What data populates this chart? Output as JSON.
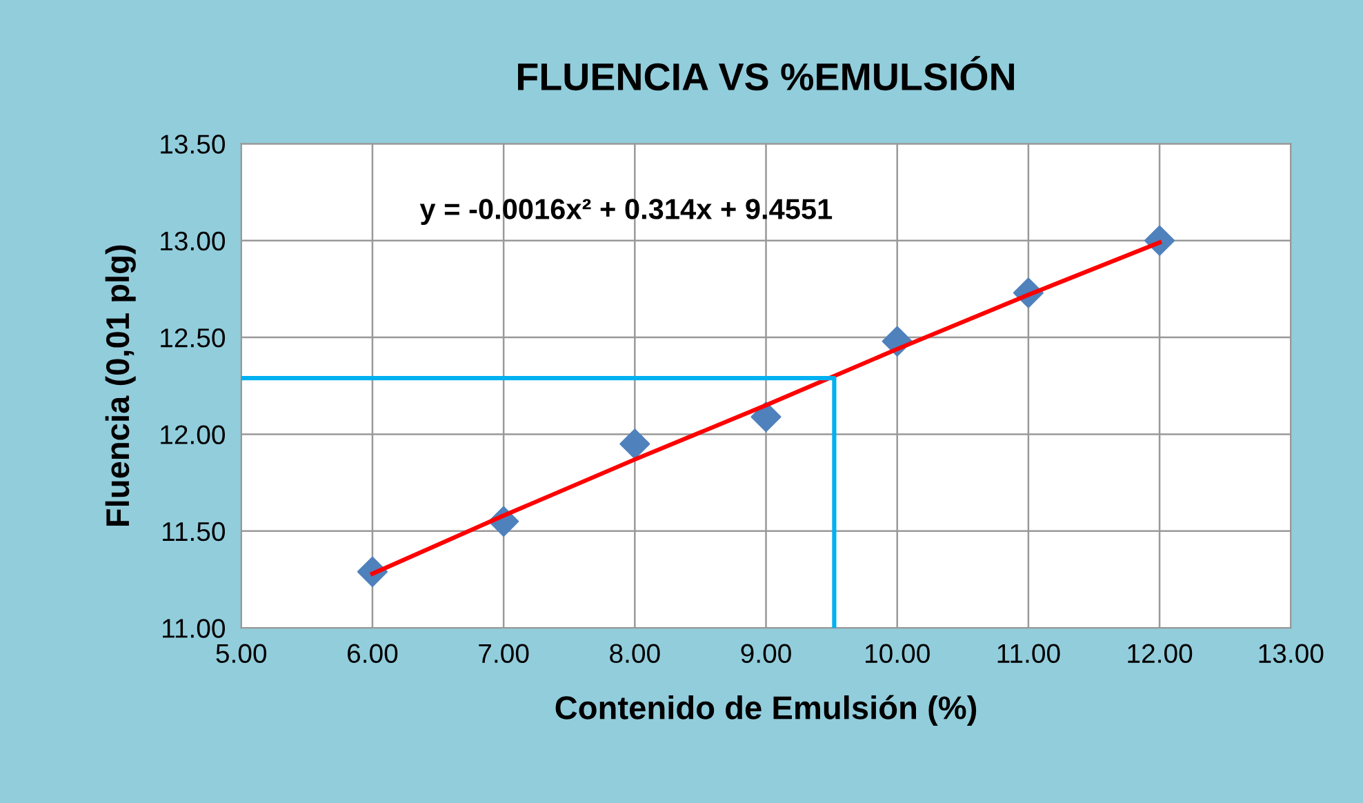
{
  "chart_data": {
    "type": "scatter",
    "title": "FLUENCIA VS %EMULSIÓN",
    "xlabel": "Contenido de Emulsión (%)",
    "ylabel": "Fluencia (0,01 plg)",
    "annotations": [
      "y = -0.0016x² + 0.314x + 9.4551"
    ],
    "series": [
      {
        "color": "#4f81bd",
        "marker": "diamond",
        "x": [
          6,
          7,
          8,
          9,
          10,
          11,
          12
        ],
        "values": [
          11.29,
          11.55,
          11.95,
          12.09,
          12.48,
          12.73,
          13.0
        ]
      },
      {
        "type": "line",
        "color": "#ff0000",
        "marker": "none",
        "x": [
          6,
          7,
          8,
          9,
          10,
          11,
          12
        ],
        "values": [
          11.28,
          11.58,
          11.87,
          12.15,
          12.44,
          12.72,
          12.99
        ]
      },
      {
        "type": "line",
        "color": "#00b0f0",
        "marker": "none",
        "x": [
          5,
          9.52,
          9.52
        ],
        "values": [
          12.29,
          12.29,
          11.0
        ]
      }
    ],
    "xlim": [
      5,
      13
    ],
    "xticks": [
      {
        "value": 5,
        "label": "5.00"
      },
      {
        "value": 6,
        "label": "6.00"
      },
      {
        "value": 7,
        "label": "7.00"
      },
      {
        "value": 8,
        "label": "8.00"
      },
      {
        "value": 9,
        "label": "9.00"
      },
      {
        "value": 10,
        "label": "10.00"
      },
      {
        "value": 11,
        "label": "11.00"
      },
      {
        "value": 12,
        "label": "12.00"
      },
      {
        "value": 13,
        "label": "13.00"
      }
    ],
    "ylim": [
      11,
      13.5
    ],
    "yticks": [
      {
        "value": 11,
        "label": "11.00"
      },
      {
        "value": 11.5,
        "label": "11.50"
      },
      {
        "value": 12,
        "label": "12.00"
      },
      {
        "value": 12.5,
        "label": "12.50"
      },
      {
        "value": 13,
        "label": "13.00"
      },
      {
        "value": 13.5,
        "label": "13.50"
      }
    ],
    "grid": true,
    "legend": false
  }
}
